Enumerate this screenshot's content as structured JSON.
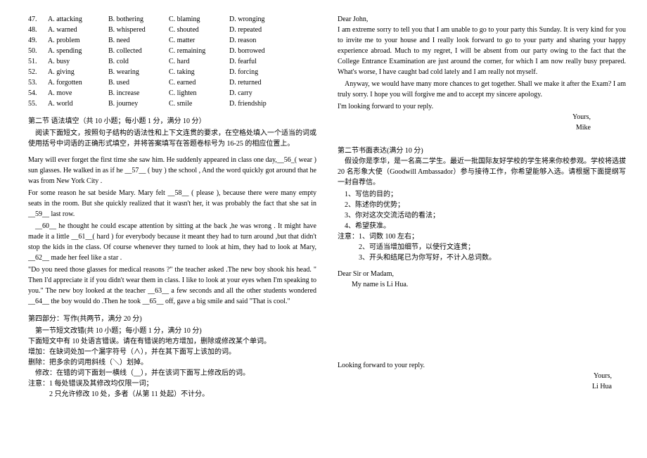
{
  "mc": [
    {
      "n": "47.",
      "a": "A. attacking",
      "b": "B. bothering",
      "c": "C. blaming",
      "d": "D. wronging"
    },
    {
      "n": "48.",
      "a": "A. warned",
      "b": "B. whispered",
      "c": "C. shouted",
      "d": "D. repeated"
    },
    {
      "n": "49.",
      "a": "A. problem",
      "b": "B. need",
      "c": "C. matter",
      "d": "D. reason"
    },
    {
      "n": "50.",
      "a": "A. spending",
      "b": "B. collected",
      "c": "C. remaining",
      "d": "D. borrowed"
    },
    {
      "n": "51.",
      "a": "A. busy",
      "b": "B. cold",
      "c": "C. hard",
      "d": "D. fearful"
    },
    {
      "n": "52.",
      "a": "A. giving",
      "b": "B. wearing",
      "c": "C. taking",
      "d": "D. forcing"
    },
    {
      "n": "53.",
      "a": "A. forgotten",
      "b": "B. used",
      "c": "C. earned",
      "d": "D. returned"
    },
    {
      "n": "54.",
      "a": "A. move",
      "b": "B. increase",
      "c": "C. lighten",
      "d": "D. carry"
    },
    {
      "n": "55.",
      "a": "A. world",
      "b": "B. journey",
      "c": "C. smile",
      "d": "D. friendship"
    }
  ],
  "sec2_title": "第二节  语法填空（共 10 小题；每小题 1 分，满分 10 分）",
  "sec2_intro": "阅读下面短文，按照句子结构的语法性和上下文连贯的要求，在空格处填入一个适当的词或使用括号中词语的正确形式填空，并将答案填写在答题卷标号为 16-25 的相应位置上。",
  "p1": "Mary will ever forget the first time she saw him. He suddenly appeared in class one day,__56_( wear ) sun glasses. He walked in as if he __57__ ( buy ) the school , And the word quickly got around that he was from New York City .",
  "p2": "For some reason he sat beside Mary. Mary felt __58__ ( please ), because there were many empty seats in the room. But she quickly realized that it wasn't her, it was probably the fact that she sat in __59__ last row.",
  "p3": "__60__ he thought he could escape attention by sitting at the back ,he was wrong . It might have made it a little __61__( hard ) for everybody because it meant they had to turn around ,but that didn't stop the kids in the class. Of course whenever they turned to look at him, they had to look at Mary, __62__ made her feel like a star .",
  "p4": "\"Do you need those glasses for medical reasons ?\" the teacher asked .The new boy shook his head. \" Then I'd appreciate it if you didn't wear them in class. I like to look at your eyes when I'm speaking to you.\" The new boy looked at the teacher __63__ a few seconds and all the other students wondered __64__ the boy would do .Then he took __65__ off, gave a big smile and said \"That is cool.\"",
  "sec4_title": "第四部分：写作(共两节，满分 20 分)",
  "sec4_sub": "第一节短文改错(共 10 小题；每小题 1 分，满分 10 分)",
  "sec4_l1": "下面短文中有 10 处语言错误。请在有错误的地方增加，删除或修改某个单词。",
  "sec4_l2": "增加：在缺词处加一个漏字符号（∧），并在其下面写上该加的词。",
  "sec4_l3": "删除：把多余的词用斜线（＼）划掉。",
  "sec4_l4": "修改：在错的词下面划一横线（__），并在该词下面写上修改后的词。",
  "sec4_n1": "注意：1    每处错误及其修改均仅限一词；",
  "sec4_n2": "2    只允许修改 10 处，多者（从第 11 处起）不计分。",
  "letter_hdr": "Dear John,",
  "letter_p1": "I am extreme sorry to tell you that I am unable to go to your party this Sunday. It is very kind for you to invite me to your house and I really look forward to go to your party and sharing your happy experience abroad. Much to my regret, I will be absent from our party owing to the fact that the College Entrance Examination are just around the corner, for which I am now really busy prepared. What's worse, I have caught bad cold lately and I am really not myself.",
  "letter_p2": "Anyway, we would have many more chances to get together. Shall we make it after the Exam? I am truly sorry. I hope you will forgive me and to accept my sincere apology.",
  "letter_p3": "I'm looking forward to your reply.",
  "letter_sig1": "Yours,",
  "letter_sig2": "Mike",
  "task2_title": "第二节书面表达(满分 10 分)",
  "task2_intro": "假设你是李华，是一名高二学生。最近一批国际友好学校的学生将来你校参观。学校将选拔 20 名形象大使（Goodwill Ambassador）参与接待工作，你希望能够入选。请根据下面提纲写一封自荐信。",
  "task2_i1": "1、写信的目的；",
  "task2_i2": "2、陈述你的优势；",
  "task2_i3": "3、你对这次交流活动的看法；",
  "task2_i4": "4、希望获准。",
  "task2_note": "注意：1、词数 100 左右；",
  "task2_note2": "2、可适当增加细节，以使行文连贯；",
  "task2_note3": "3、开头和结尾已为你写好，不计入总词数。",
  "letter2_hdr": "Dear Sir or Madam,",
  "letter2_l1": "My name is Li Hua.",
  "letter2_close": "Looking forward to your reply.",
  "letter2_sig1": "Yours,",
  "letter2_sig2": "Li Hua"
}
